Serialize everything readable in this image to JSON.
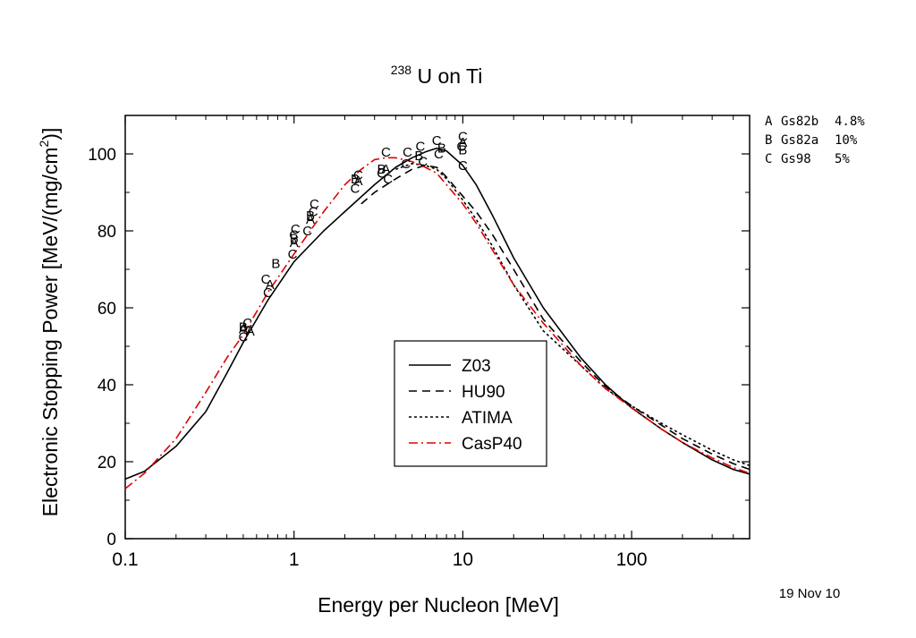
{
  "chart_data": {
    "type": "line",
    "title": {
      "superscript": "238",
      "main": "U on Ti"
    },
    "xlabel": "Energy per Nucleon [MeV]",
    "ylabel": {
      "main": "Electronic Stopping Power [MeV/(mg/cm",
      "sup": "2",
      "end": ")]"
    },
    "x_scale": "log",
    "xlim": [
      0.1,
      500
    ],
    "ylim": [
      0,
      110
    ],
    "x_ticks": [
      {
        "value": 0.1,
        "label": "0.1"
      },
      {
        "value": 1,
        "label": "1"
      },
      {
        "value": 10,
        "label": "10"
      },
      {
        "value": 100,
        "label": "100"
      }
    ],
    "y_ticks": [
      {
        "value": 0,
        "label": "0"
      },
      {
        "value": 20,
        "label": "20"
      },
      {
        "value": 40,
        "label": "40"
      },
      {
        "value": 60,
        "label": "60"
      },
      {
        "value": 80,
        "label": "80"
      },
      {
        "value": 100,
        "label": "100"
      }
    ],
    "legend_position": "center-right, below curves",
    "series": [
      {
        "name": "Z03",
        "style": "solid",
        "color": "#000000",
        "points": [
          [
            0.1,
            15.5
          ],
          [
            0.13,
            17.5
          ],
          [
            0.2,
            24
          ],
          [
            0.3,
            33
          ],
          [
            0.4,
            43
          ],
          [
            0.5,
            51
          ],
          [
            0.7,
            62
          ],
          [
            1,
            72
          ],
          [
            1.5,
            80
          ],
          [
            2,
            85
          ],
          [
            3,
            92
          ],
          [
            4,
            96.5
          ],
          [
            5,
            99
          ],
          [
            6,
            100.5
          ],
          [
            7,
            101.5
          ],
          [
            8,
            100.8
          ],
          [
            10,
            97
          ],
          [
            12,
            92
          ],
          [
            15,
            84
          ],
          [
            20,
            73
          ],
          [
            30,
            60
          ],
          [
            50,
            47
          ],
          [
            70,
            40
          ],
          [
            100,
            34
          ],
          [
            150,
            28.5
          ],
          [
            200,
            25
          ],
          [
            300,
            20.5
          ],
          [
            400,
            18
          ],
          [
            500,
            16.8
          ]
        ]
      },
      {
        "name": "HU90",
        "style": "dashed",
        "color": "#000000",
        "points": [
          [
            2.5,
            87
          ],
          [
            3,
            90
          ],
          [
            4,
            93.5
          ],
          [
            5,
            96
          ],
          [
            6,
            97
          ],
          [
            7,
            96.5
          ],
          [
            8,
            94
          ],
          [
            10,
            89
          ],
          [
            12,
            85
          ],
          [
            15,
            79
          ],
          [
            20,
            70
          ],
          [
            30,
            57
          ],
          [
            50,
            46
          ],
          [
            70,
            39.5
          ],
          [
            100,
            34.5
          ],
          [
            150,
            29.5
          ],
          [
            200,
            26
          ],
          [
            300,
            22
          ],
          [
            400,
            19.5
          ],
          [
            500,
            18
          ]
        ]
      },
      {
        "name": "ATIMA",
        "style": "dotted",
        "color": "#000000",
        "points": [
          [
            4,
            96
          ],
          [
            5,
            97.5
          ],
          [
            6,
            97
          ],
          [
            7,
            96
          ],
          [
            8,
            93.5
          ],
          [
            10,
            88
          ],
          [
            12,
            83
          ],
          [
            15,
            76
          ],
          [
            20,
            66
          ],
          [
            30,
            54
          ],
          [
            50,
            45
          ],
          [
            70,
            39
          ],
          [
            100,
            34.5
          ],
          [
            150,
            30
          ],
          [
            200,
            27
          ],
          [
            300,
            23
          ],
          [
            400,
            20.5
          ],
          [
            500,
            19
          ]
        ]
      },
      {
        "name": "CasP40",
        "style": "dashdot",
        "color": "#e00000",
        "points": [
          [
            0.1,
            13
          ],
          [
            0.13,
            17
          ],
          [
            0.2,
            26
          ],
          [
            0.3,
            38
          ],
          [
            0.4,
            47
          ],
          [
            0.5,
            53
          ],
          [
            0.7,
            64
          ],
          [
            1,
            74
          ],
          [
            1.5,
            85
          ],
          [
            2,
            92
          ],
          [
            2.5,
            96
          ],
          [
            3,
            98.5
          ],
          [
            3.5,
            99
          ],
          [
            4,
            99
          ],
          [
            5,
            98
          ],
          [
            6,
            96.5
          ],
          [
            7,
            95
          ],
          [
            8,
            92
          ],
          [
            10,
            87
          ],
          [
            12,
            82
          ],
          [
            15,
            75
          ],
          [
            20,
            66
          ],
          [
            30,
            56
          ],
          [
            50,
            45
          ],
          [
            70,
            39
          ],
          [
            100,
            34
          ],
          [
            150,
            28.5
          ],
          [
            200,
            25
          ],
          [
            300,
            21
          ],
          [
            400,
            18.5
          ],
          [
            500,
            17
          ]
        ]
      }
    ],
    "data_points": [
      {
        "label": "A",
        "x": 0.5,
        "y": 54.5
      },
      {
        "label": "A",
        "x": 0.55,
        "y": 54
      },
      {
        "label": "A",
        "x": 0.72,
        "y": 66
      },
      {
        "label": "A",
        "x": 1.0,
        "y": 77
      },
      {
        "label": "A",
        "x": 1.25,
        "y": 83
      },
      {
        "label": "A",
        "x": 2.4,
        "y": 93
      },
      {
        "label": "A",
        "x": 3.5,
        "y": 96
      },
      {
        "label": "A",
        "x": 10,
        "y": 103
      },
      {
        "label": "B",
        "x": 0.5,
        "y": 55
      },
      {
        "label": "B",
        "x": 0.78,
        "y": 71.5
      },
      {
        "label": "B",
        "x": 1.0,
        "y": 78
      },
      {
        "label": "B",
        "x": 1.25,
        "y": 84
      },
      {
        "label": "B",
        "x": 2.3,
        "y": 93.5
      },
      {
        "label": "B",
        "x": 3.3,
        "y": 96
      },
      {
        "label": "B",
        "x": 5.5,
        "y": 99.5
      },
      {
        "label": "B",
        "x": 7.5,
        "y": 101.5
      },
      {
        "label": "B",
        "x": 10,
        "y": 101
      },
      {
        "label": "C",
        "x": 0.5,
        "y": 52.5
      },
      {
        "label": "C",
        "x": 0.53,
        "y": 56
      },
      {
        "label": "C",
        "x": 0.68,
        "y": 67.5
      },
      {
        "label": "C",
        "x": 0.7,
        "y": 64
      },
      {
        "label": "C",
        "x": 0.98,
        "y": 74
      },
      {
        "label": "C",
        "x": 1.0,
        "y": 79
      },
      {
        "label": "C",
        "x": 1.02,
        "y": 80.5
      },
      {
        "label": "C",
        "x": 1.2,
        "y": 80
      },
      {
        "label": "C",
        "x": 1.3,
        "y": 85
      },
      {
        "label": "C",
        "x": 1.32,
        "y": 87
      },
      {
        "label": "C",
        "x": 2.3,
        "y": 91
      },
      {
        "label": "C",
        "x": 2.4,
        "y": 94.5
      },
      {
        "label": "C",
        "x": 3.3,
        "y": 95
      },
      {
        "label": "C",
        "x": 3.5,
        "y": 100.5
      },
      {
        "label": "C",
        "x": 3.6,
        "y": 93.5
      },
      {
        "label": "C",
        "x": 4.6,
        "y": 97.5
      },
      {
        "label": "C",
        "x": 4.7,
        "y": 100.5
      },
      {
        "label": "C",
        "x": 5.6,
        "y": 102
      },
      {
        "label": "C",
        "x": 5.8,
        "y": 98
      },
      {
        "label": "C",
        "x": 7.0,
        "y": 103.5
      },
      {
        "label": "C",
        "x": 7.2,
        "y": 100
      },
      {
        "label": "C",
        "x": 10,
        "y": 104.5
      },
      {
        "label": "C",
        "x": 10,
        "y": 97
      },
      {
        "label": "C",
        "x": 9.8,
        "y": 102
      }
    ],
    "references": [
      {
        "letter": "A",
        "source": "Gs82b",
        "uncertainty": "4.8%"
      },
      {
        "letter": "B",
        "source": "Gs82a",
        "uncertainty": "10%"
      },
      {
        "letter": "C",
        "source": "Gs98",
        "uncertainty": "5%"
      }
    ]
  },
  "date_stamp": "19 Nov 10"
}
